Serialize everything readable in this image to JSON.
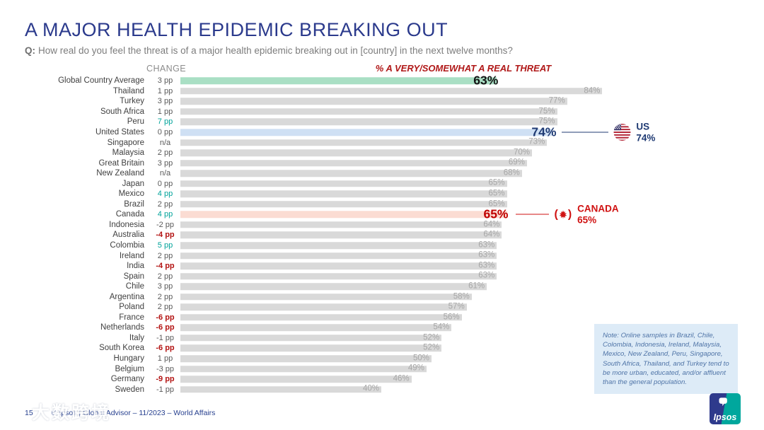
{
  "page": {
    "title": "A MAJOR HEALTH EPIDEMIC BREAKING OUT",
    "question_prefix": "Q:",
    "question_text": "How real do you feel the threat is of a major health epidemic breaking out in [country] in the next twelve months?",
    "footer_page_number": "15",
    "footer_source": "© Ipsos | Global Advisor – 11/2023 – World Affairs",
    "watermark_text": "大数跨境",
    "logo_text": "Ipsos"
  },
  "headers": {
    "change_column": "CHANGE",
    "measure": "% A VERY/SOMEWHAT A REAL THREAT"
  },
  "chart_data": {
    "type": "bar",
    "orientation": "horizontal",
    "unit": "%",
    "value_axis_label": "% a very/somewhat a real threat",
    "xlim": [
      0,
      86
    ],
    "rows": [
      {
        "country": "Global Country Average",
        "change": "3 pp",
        "value": 63,
        "highlight": "global",
        "label_style": "big-black"
      },
      {
        "country": "Thailand",
        "change": "1 pp",
        "value": 84
      },
      {
        "country": "Turkey",
        "change": "3 pp",
        "value": 77
      },
      {
        "country": "South Africa",
        "change": "1 pp",
        "value": 75
      },
      {
        "country": "Peru",
        "change": "7 pp",
        "change_color": "teal",
        "value": 75
      },
      {
        "country": "United States",
        "change": "0 pp",
        "value": 74,
        "highlight": "us",
        "label_style": "big-navy",
        "callout": "us"
      },
      {
        "country": "Singapore",
        "change": "n/a",
        "value": 73
      },
      {
        "country": "Malaysia",
        "change": "2 pp",
        "value": 70
      },
      {
        "country": "Great Britain",
        "change": "3 pp",
        "value": 69
      },
      {
        "country": "New Zealand",
        "change": "n/a",
        "value": 68
      },
      {
        "country": "Japan",
        "change": "0 pp",
        "value": 65
      },
      {
        "country": "Mexico",
        "change": "4 pp",
        "change_color": "teal",
        "value": 65
      },
      {
        "country": "Brazil",
        "change": "2 pp",
        "value": 65
      },
      {
        "country": "Canada",
        "change": "4 pp",
        "change_color": "teal",
        "value": 65,
        "highlight": "canada",
        "label_style": "big-red",
        "callout": "canada"
      },
      {
        "country": "Indonesia",
        "change": "-2 pp",
        "value": 64
      },
      {
        "country": "Australia",
        "change": "-4 pp",
        "change_color": "red",
        "value": 64
      },
      {
        "country": "Colombia",
        "change": "5 pp",
        "change_color": "teal",
        "value": 63
      },
      {
        "country": "Ireland",
        "change": "2 pp",
        "value": 63
      },
      {
        "country": "India",
        "change": "-4 pp",
        "change_color": "red",
        "value": 63
      },
      {
        "country": "Spain",
        "change": "2 pp",
        "value": 63
      },
      {
        "country": "Chile",
        "change": "3 pp",
        "value": 61
      },
      {
        "country": "Argentina",
        "change": "2 pp",
        "value": 58
      },
      {
        "country": "Poland",
        "change": "2 pp",
        "value": 57
      },
      {
        "country": "France",
        "change": "-6 pp",
        "change_color": "red",
        "value": 56
      },
      {
        "country": "Netherlands",
        "change": "-6 pp",
        "change_color": "red",
        "value": 54
      },
      {
        "country": "Italy",
        "change": "-1 pp",
        "value": 52
      },
      {
        "country": "South Korea",
        "change": "-6 pp",
        "change_color": "red",
        "value": 52
      },
      {
        "country": "Hungary",
        "change": "1 pp",
        "value": 50
      },
      {
        "country": "Belgium",
        "change": "-3 pp",
        "value": 49
      },
      {
        "country": "Germany",
        "change": "-9 pp",
        "change_color": "red",
        "value": 46
      },
      {
        "country": "Sweden",
        "change": "-1 pp",
        "value": 40
      }
    ]
  },
  "callouts": {
    "us": {
      "label": "US",
      "value": "74%"
    },
    "canada": {
      "label": "CANADA",
      "value": "65%"
    }
  },
  "note": "Note: Online samples in Brazil, Chile, Colombia, Indonesia, Ireland, Malaysia, Mexico, New Zealand, Peru, Singapore, South Africa, Thailand, and Turkey tend to be more urban, educated, and/or affluent than the general population.",
  "colors": {
    "bar_default": "#D9D9D9",
    "bar_global": "#A9DFC4",
    "bar_us": "#CFE0F4",
    "bar_canada": "#FBDCD3",
    "accent_red": "#C00000",
    "accent_teal": "#00A39A",
    "navy": "#1F3A73",
    "title_blue": "#2B3A8C",
    "note_bg": "#DDEBF7",
    "note_text": "#4F74A7"
  }
}
